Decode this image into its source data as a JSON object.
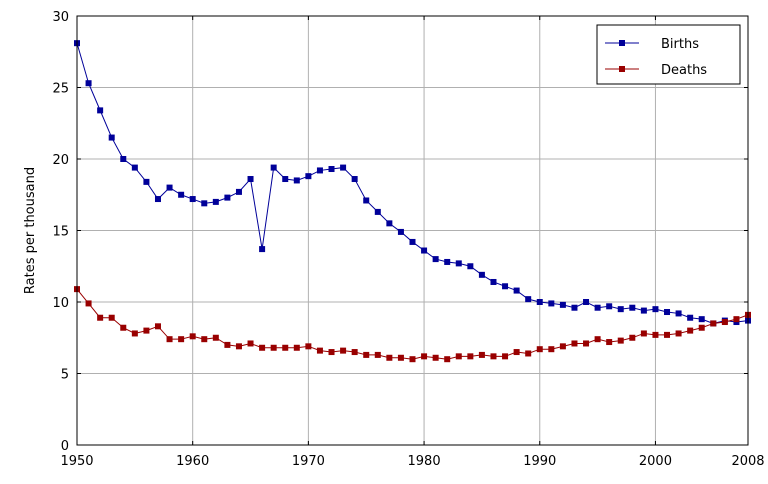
{
  "chart_data": {
    "type": "line",
    "title": "",
    "xlabel": "",
    "ylabel": "Rates per thousand",
    "xlim": [
      1950,
      2008
    ],
    "ylim": [
      0,
      30
    ],
    "xticks": [
      1950,
      1960,
      1970,
      1980,
      1990,
      2000,
      2008
    ],
    "yticks": [
      0,
      5,
      10,
      15,
      20,
      25,
      30
    ],
    "grid": true,
    "legend": "top-right",
    "x": [
      1950,
      1951,
      1952,
      1953,
      1954,
      1955,
      1956,
      1957,
      1958,
      1959,
      1960,
      1961,
      1962,
      1963,
      1964,
      1965,
      1966,
      1967,
      1968,
      1969,
      1970,
      1971,
      1972,
      1973,
      1974,
      1975,
      1976,
      1977,
      1978,
      1979,
      1980,
      1981,
      1982,
      1983,
      1984,
      1985,
      1986,
      1987,
      1988,
      1989,
      1990,
      1991,
      1992,
      1993,
      1994,
      1995,
      1996,
      1997,
      1998,
      1999,
      2000,
      2001,
      2002,
      2003,
      2004,
      2005,
      2006,
      2007,
      2008
    ],
    "series": [
      {
        "name": "Births",
        "color": "#000099",
        "values": [
          28.1,
          25.3,
          23.4,
          21.5,
          20.0,
          19.4,
          18.4,
          17.2,
          18.0,
          17.5,
          17.2,
          16.9,
          17.0,
          17.3,
          17.7,
          18.6,
          13.7,
          19.4,
          18.6,
          18.5,
          18.8,
          19.2,
          19.3,
          19.4,
          18.6,
          17.1,
          16.3,
          15.5,
          14.9,
          14.2,
          13.6,
          13.0,
          12.8,
          12.7,
          12.5,
          11.9,
          11.4,
          11.1,
          10.8,
          10.2,
          10.0,
          9.9,
          9.8,
          9.6,
          10.0,
          9.6,
          9.7,
          9.5,
          9.6,
          9.4,
          9.5,
          9.3,
          9.2,
          8.9,
          8.8,
          8.5,
          8.7,
          8.6,
          8.7
        ]
      },
      {
        "name": "Deaths",
        "color": "#990000",
        "values": [
          10.9,
          9.9,
          8.9,
          8.9,
          8.2,
          7.8,
          8.0,
          8.3,
          7.4,
          7.4,
          7.6,
          7.4,
          7.5,
          7.0,
          6.9,
          7.1,
          6.8,
          6.8,
          6.8,
          6.8,
          6.9,
          6.6,
          6.5,
          6.6,
          6.5,
          6.3,
          6.3,
          6.1,
          6.1,
          6.0,
          6.2,
          6.1,
          6.0,
          6.2,
          6.2,
          6.3,
          6.2,
          6.2,
          6.5,
          6.4,
          6.7,
          6.7,
          6.9,
          7.1,
          7.1,
          7.4,
          7.2,
          7.3,
          7.5,
          7.8,
          7.7,
          7.7,
          7.8,
          8.0,
          8.2,
          8.5,
          8.6,
          8.8,
          9.1
        ]
      }
    ]
  }
}
